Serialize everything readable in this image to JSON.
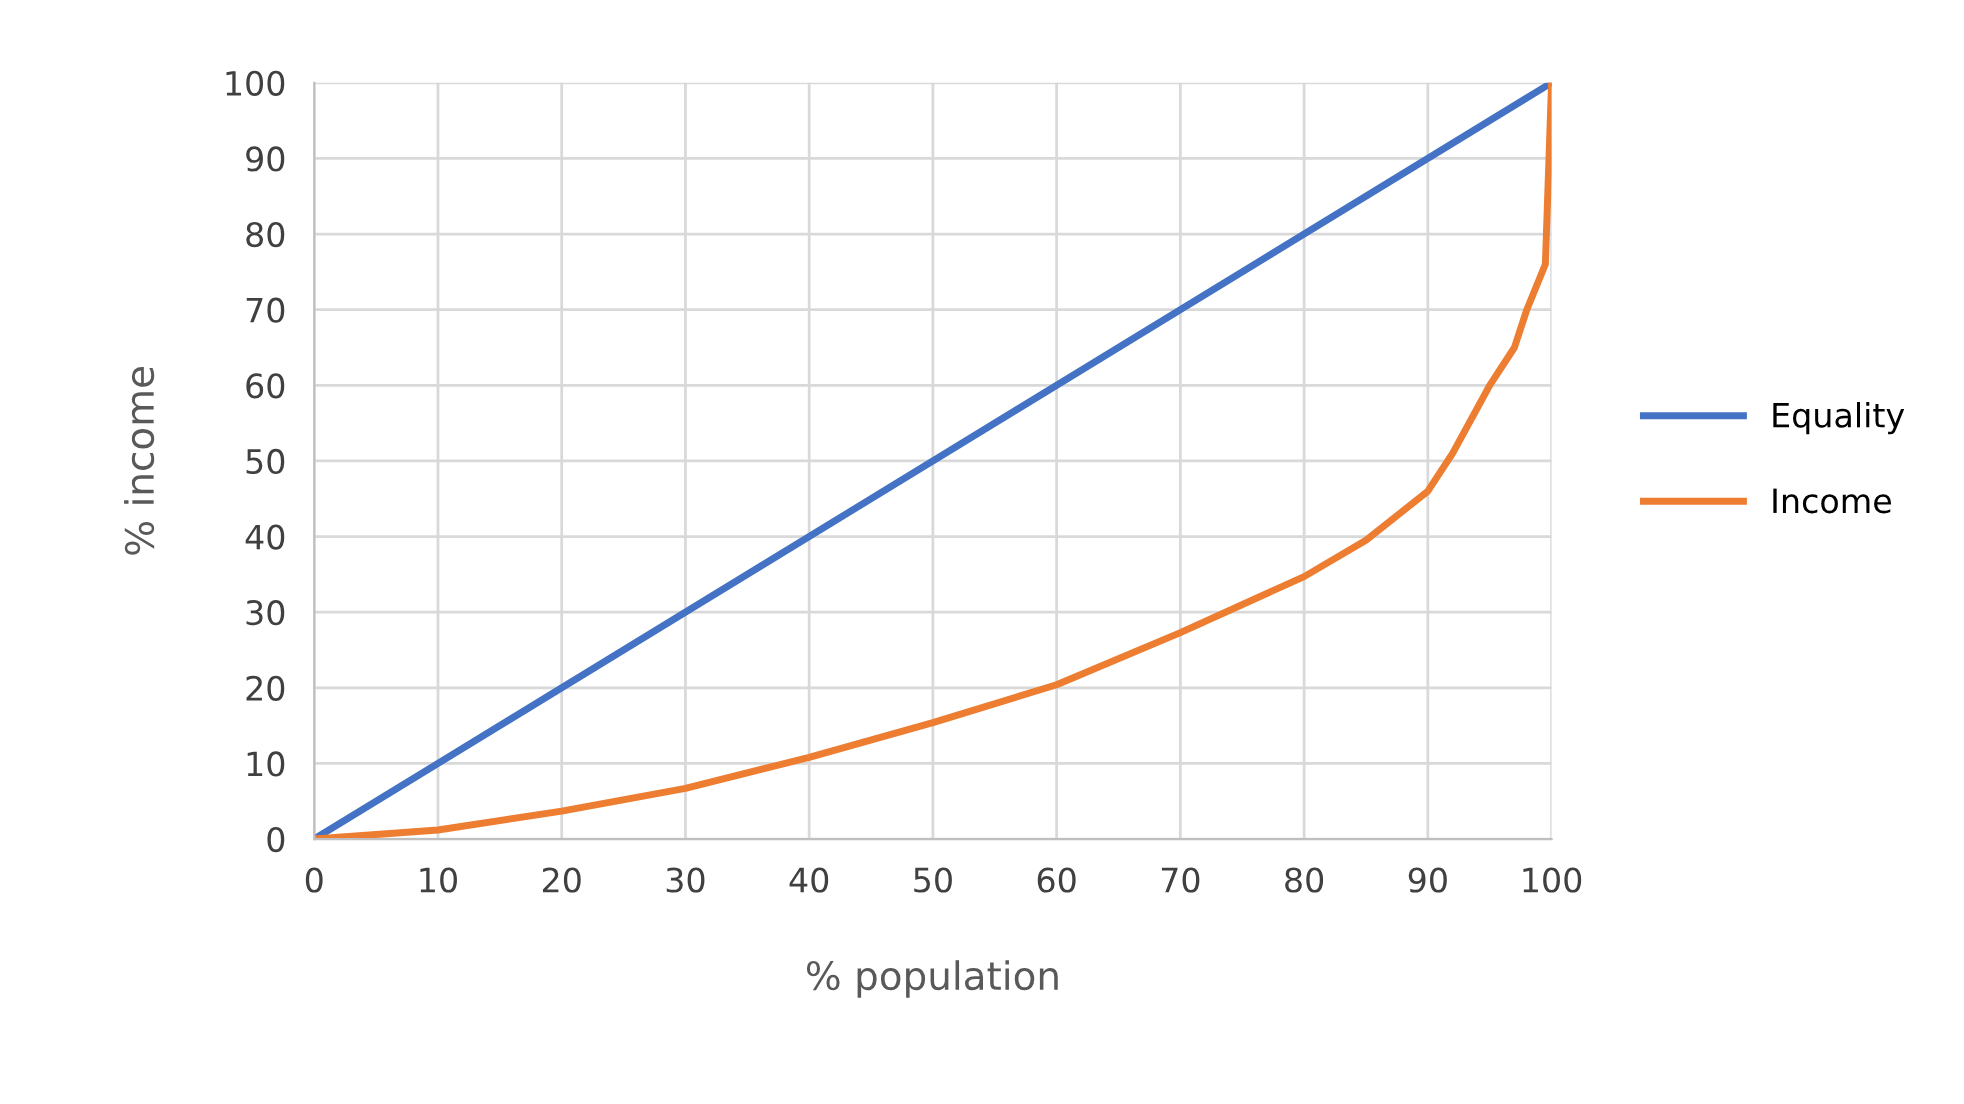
{
  "chart_data": {
    "type": "line",
    "xlabel": "% population",
    "ylabel": "% income",
    "xlim": [
      0,
      100
    ],
    "xticks": [
      0,
      10,
      20,
      30,
      40,
      50,
      60,
      70,
      80,
      90,
      100
    ],
    "ylim": [
      0,
      100
    ],
    "yticks": [
      0,
      10,
      20,
      30,
      40,
      50,
      60,
      70,
      80,
      90,
      100
    ],
    "grid": true,
    "legend": "right",
    "marker": "none",
    "line_style": "solid",
    "series": [
      {
        "name": "Equality",
        "color": "#4472c4",
        "x": [
          0,
          100
        ],
        "values": [
          0,
          100
        ]
      },
      {
        "name": "Income",
        "color": "#ed7d31",
        "x": [
          0,
          10,
          20,
          30,
          40,
          50,
          60,
          70,
          80,
          85,
          90,
          92,
          95,
          97,
          98,
          99.5,
          100
        ],
        "values": [
          0,
          1.2,
          3.7,
          6.7,
          10.8,
          15.4,
          20.4,
          27.3,
          34.7,
          39.5,
          46,
          51,
          60,
          65,
          70,
          76,
          100
        ]
      }
    ]
  }
}
